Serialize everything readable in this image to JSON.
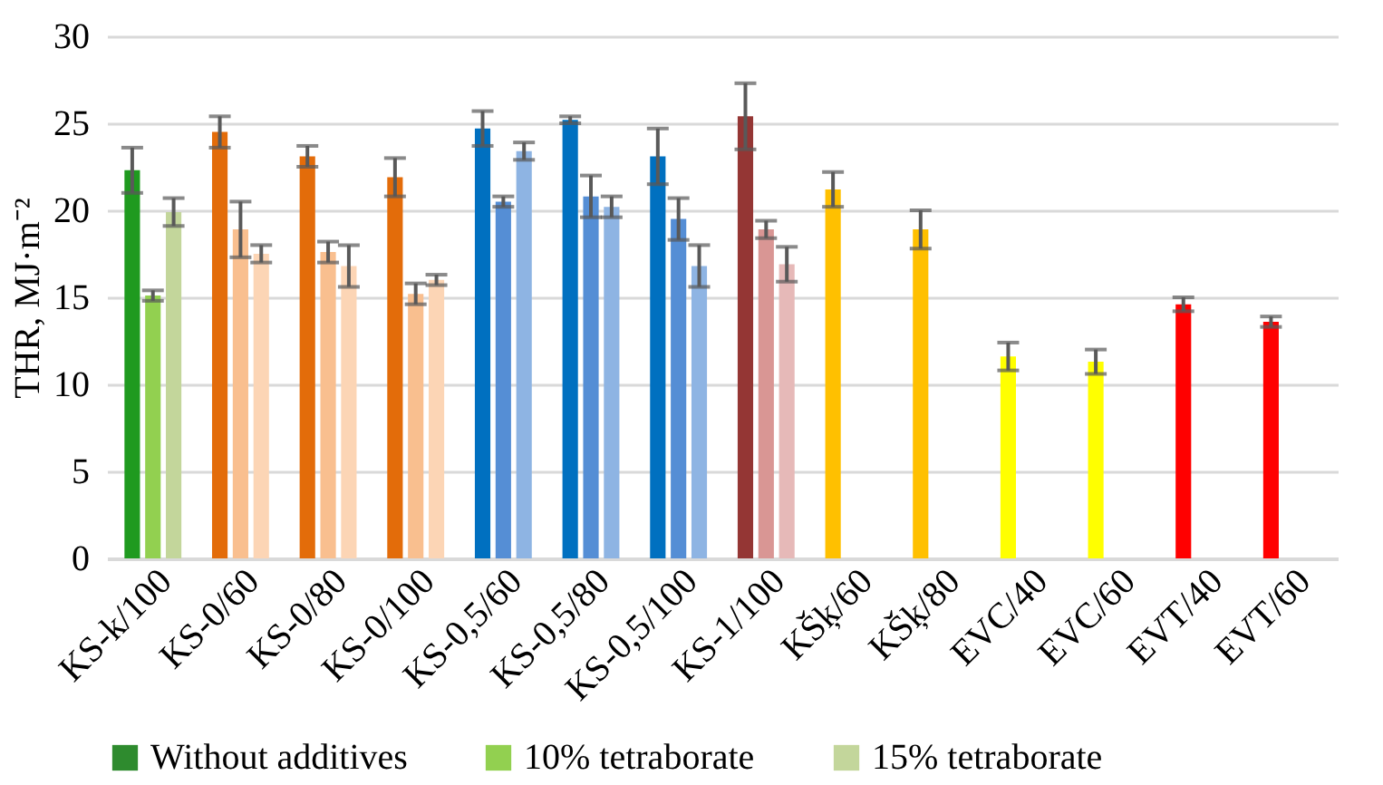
{
  "chart_data": {
    "type": "bar",
    "ylabel": "THR, MJ·m⁻²",
    "ylim": [
      0,
      30
    ],
    "yticks": [
      0,
      5,
      10,
      15,
      20,
      25,
      30
    ],
    "grid": "y",
    "legend": "bottom",
    "categories": [
      "KS-k/100",
      "KS-0/60",
      "KS-0/80",
      "KS-0/100",
      "KS-0,5/60",
      "KS-0,5/80",
      "KS-0,5/100",
      "KS-1/100",
      "KŠķ/60",
      "KŠķ/80",
      "EVC/40",
      "EVC/60",
      "EVT/40",
      "EVT/60"
    ],
    "series": [
      {
        "name": "Without additives",
        "color": "#2e8b2e",
        "values": [
          22.3,
          24.5,
          23.1,
          21.9,
          24.7,
          25.2,
          23.1,
          25.4,
          21.2,
          18.9,
          11.6,
          11.3,
          14.6,
          13.6
        ],
        "errors": [
          1.3,
          0.9,
          0.6,
          1.1,
          1.0,
          0.2,
          1.6,
          1.9,
          1.0,
          1.1,
          0.8,
          0.7,
          0.4,
          0.3
        ],
        "colors": [
          "#1f9a1f",
          "#e36c0a",
          "#e36c0a",
          "#e36c0a",
          "#0070c0",
          "#0070c0",
          "#0070c0",
          "#943634",
          "#ffc000",
          "#ffc000",
          "#ffff00",
          "#ffff00",
          "#ff0000",
          "#ff0000"
        ]
      },
      {
        "name": "10% tetraborate",
        "color": "#92d050",
        "values": [
          15.1,
          18.9,
          17.6,
          15.2,
          20.5,
          20.8,
          19.5,
          18.9,
          null,
          null,
          null,
          null,
          null,
          null
        ],
        "errors": [
          0.3,
          1.6,
          0.6,
          0.6,
          0.3,
          1.2,
          1.2,
          0.5,
          null,
          null,
          null,
          null,
          null,
          null
        ],
        "colors": [
          "#92d050",
          "#f9bf8f",
          "#f9bf8f",
          "#f9bf8f",
          "#558ed5",
          "#558ed5",
          "#558ed5",
          "#d99694",
          null,
          null,
          null,
          null,
          null,
          null
        ]
      },
      {
        "name": "15% tetraborate",
        "color": "#c3d69b",
        "values": [
          19.9,
          17.5,
          16.8,
          16.0,
          23.4,
          20.2,
          16.8,
          16.9,
          null,
          null,
          null,
          null,
          null,
          null
        ],
        "errors": [
          0.8,
          0.5,
          1.2,
          0.3,
          0.5,
          0.6,
          1.2,
          1.0,
          null,
          null,
          null,
          null,
          null,
          null
        ],
        "colors": [
          "#c3d69b",
          "#fcd5b5",
          "#fcd5b5",
          "#fcd5b5",
          "#8eb4e3",
          "#8eb4e3",
          "#8eb4e3",
          "#e6b9b8",
          null,
          null,
          null,
          null,
          null,
          null
        ]
      }
    ]
  }
}
